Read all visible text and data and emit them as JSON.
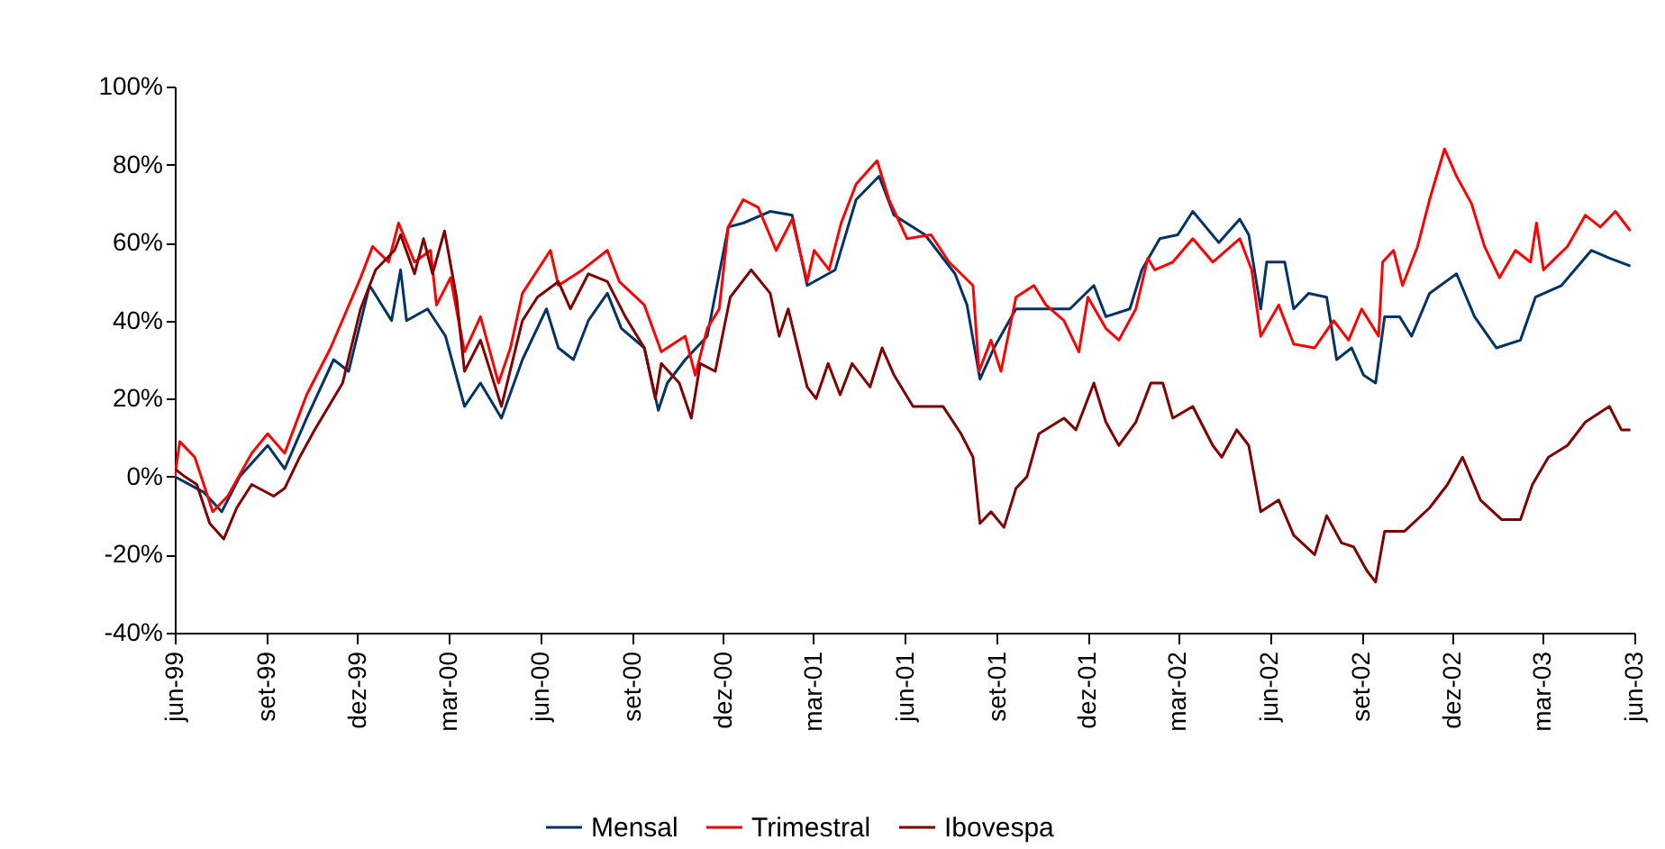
{
  "chart_data": {
    "type": "line",
    "xlim": [
      "1999-06-01",
      "2003-06-01"
    ],
    "xticks": [
      {
        "value": "1999-06-01",
        "label": "jun-99"
      },
      {
        "value": "1999-09-01",
        "label": "set-99"
      },
      {
        "value": "1999-12-01",
        "label": "dez-99"
      },
      {
        "value": "2000-03-01",
        "label": "mar-00"
      },
      {
        "value": "2000-06-01",
        "label": "jun-00"
      },
      {
        "value": "2000-09-01",
        "label": "set-00"
      },
      {
        "value": "2000-12-01",
        "label": "dez-00"
      },
      {
        "value": "2001-03-01",
        "label": "mar-01"
      },
      {
        "value": "2001-06-01",
        "label": "jun-01"
      },
      {
        "value": "2001-09-01",
        "label": "set-01"
      },
      {
        "value": "2001-12-01",
        "label": "dez-01"
      },
      {
        "value": "2002-03-01",
        "label": "mar-02"
      },
      {
        "value": "2002-06-01",
        "label": "jun-02"
      },
      {
        "value": "2002-09-01",
        "label": "set-02"
      },
      {
        "value": "2002-12-01",
        "label": "dez-02"
      },
      {
        "value": "2003-03-01",
        "label": "mar-03"
      },
      {
        "value": "2003-06-01",
        "label": "jun-03"
      }
    ],
    "ylim": [
      -40,
      100
    ],
    "yticks": [
      {
        "value": -40,
        "label": "-40%"
      },
      {
        "value": -20,
        "label": "-20%"
      },
      {
        "value": 0,
        "label": "0%"
      },
      {
        "value": 20,
        "label": "20%"
      },
      {
        "value": 40,
        "label": "40%"
      },
      {
        "value": 60,
        "label": "60%"
      },
      {
        "value": 80,
        "label": "80%"
      },
      {
        "value": 100,
        "label": "100%"
      }
    ],
    "grid": false,
    "legend": "bottom",
    "series": [
      {
        "name": "Mensal",
        "color": "#003366",
        "x": [
          "1999-06-01",
          "1999-06-30",
          "1999-07-18",
          "1999-08-05",
          "1999-09-02",
          "1999-09-19",
          "1999-10-11",
          "1999-11-07",
          "1999-11-22",
          "1999-12-13",
          "2000-01-04",
          "2000-01-13",
          "2000-01-19",
          "2000-02-09",
          "2000-02-27",
          "2000-03-17",
          "2000-04-02",
          "2000-04-23",
          "2000-05-14",
          "2000-06-07",
          "2000-06-19",
          "2000-07-04",
          "2000-07-19",
          "2000-08-07",
          "2000-08-21",
          "2000-09-13",
          "2000-09-27",
          "2000-10-06",
          "2000-10-24",
          "2000-11-15",
          "2000-12-06",
          "2000-12-21",
          "2001-01-17",
          "2001-02-08",
          "2001-02-23",
          "2001-03-23",
          "2001-04-13",
          "2001-05-06",
          "2001-05-21",
          "2001-06-21",
          "2001-07-21",
          "2001-08-02",
          "2001-08-15",
          "2001-08-29",
          "2001-09-20",
          "2001-11-13",
          "2001-12-07",
          "2001-12-19",
          "2002-01-12",
          "2002-01-24",
          "2002-02-11",
          "2002-03-01",
          "2002-03-16",
          "2002-04-11",
          "2002-05-02",
          "2002-05-11",
          "2002-05-23",
          "2002-05-29",
          "2002-06-16",
          "2002-06-25",
          "2002-07-10",
          "2002-07-28",
          "2002-08-07",
          "2002-08-22",
          "2002-09-03",
          "2002-09-15",
          "2002-09-24",
          "2002-10-09",
          "2002-10-21",
          "2002-11-08",
          "2002-12-05",
          "2002-12-23",
          "2003-01-14",
          "2003-02-07",
          "2003-02-22",
          "2003-03-20",
          "2003-04-19",
          "2003-05-07",
          "2003-05-28"
        ],
        "values": [
          0,
          -4,
          -9,
          0,
          8,
          2,
          15,
          30,
          27,
          49,
          40,
          53,
          40,
          43,
          36,
          18,
          24,
          15,
          30,
          43,
          33,
          30,
          40,
          47,
          38,
          33,
          17,
          24,
          30,
          36,
          64,
          65,
          68,
          67,
          49,
          53,
          71,
          77,
          67,
          62,
          52,
          44,
          25,
          33,
          43,
          43,
          49,
          41,
          43,
          53,
          61,
          62,
          68,
          60,
          66,
          62,
          43,
          55,
          55,
          43,
          47,
          46,
          30,
          33,
          26,
          24,
          41,
          41,
          36,
          47,
          52,
          41,
          33,
          35,
          46,
          49,
          58,
          56,
          54
        ]
      },
      {
        "name": "Trimestral",
        "color": "#ff0000",
        "x": [
          "1999-06-01",
          "1999-06-06",
          "1999-06-21",
          "1999-07-09",
          "1999-07-24",
          "1999-08-17",
          "1999-09-02",
          "1999-09-19",
          "1999-10-11",
          "1999-11-04",
          "1999-12-04",
          "1999-12-16",
          "2000-01-01",
          "2000-01-11",
          "2000-01-27",
          "2000-02-12",
          "2000-02-18",
          "2000-03-03",
          "2000-03-17",
          "2000-04-02",
          "2000-04-20",
          "2000-05-02",
          "2000-05-14",
          "2000-06-11",
          "2000-06-19",
          "2000-07-13",
          "2000-08-07",
          "2000-08-19",
          "2000-09-13",
          "2000-09-30",
          "2000-10-24",
          "2000-11-03",
          "2000-11-15",
          "2000-11-27",
          "2000-12-06",
          "2000-12-21",
          "2001-01-05",
          "2001-01-23",
          "2001-02-08",
          "2001-02-23",
          "2001-03-02",
          "2001-03-17",
          "2001-03-29",
          "2001-04-13",
          "2001-05-04",
          "2001-05-16",
          "2001-06-03",
          "2001-06-27",
          "2001-07-15",
          "2001-08-08",
          "2001-08-14",
          "2001-08-26",
          "2001-09-05",
          "2001-09-20",
          "2001-10-08",
          "2001-10-20",
          "2001-11-07",
          "2001-11-22",
          "2001-12-01",
          "2001-12-19",
          "2002-01-01",
          "2002-01-18",
          "2002-01-30",
          "2002-02-06",
          "2002-02-24",
          "2002-03-16",
          "2002-04-05",
          "2002-05-02",
          "2002-05-14",
          "2002-05-23",
          "2002-06-10",
          "2002-06-25",
          "2002-07-16",
          "2002-08-04",
          "2002-08-19",
          "2002-09-01",
          "2002-09-18",
          "2002-09-22",
          "2002-10-03",
          "2002-10-12",
          "2002-10-27",
          "2002-11-08",
          "2002-11-23",
          "2002-12-05",
          "2002-12-20",
          "2003-01-02",
          "2003-01-17",
          "2003-02-02",
          "2003-02-17",
          "2003-02-23",
          "2003-03-02",
          "2003-03-26",
          "2003-04-13",
          "2003-04-28",
          "2003-05-13",
          "2003-05-28"
        ],
        "values": [
          0,
          9,
          5,
          -9,
          -5,
          6,
          11,
          6,
          21,
          33,
          51,
          59,
          55,
          65,
          55,
          58,
          44,
          51,
          32,
          41,
          24,
          33,
          47,
          58,
          49,
          53,
          58,
          50,
          44,
          32,
          36,
          26,
          38,
          43,
          64,
          71,
          69,
          58,
          66,
          50,
          58,
          53,
          65,
          75,
          81,
          71,
          61,
          62,
          55,
          49,
          27,
          35,
          27,
          46,
          49,
          44,
          40,
          32,
          46,
          38,
          35,
          43,
          56,
          53,
          55,
          61,
          55,
          61,
          53,
          36,
          44,
          34,
          33,
          40,
          35,
          43,
          36,
          55,
          58,
          49,
          59,
          71,
          84,
          77,
          70,
          59,
          51,
          58,
          55,
          65,
          53,
          59,
          67,
          64,
          68,
          63
        ]
      },
      {
        "name": "Ibovespa",
        "color": "#800000",
        "x": [
          "1999-06-01",
          "1999-06-11",
          "1999-06-23",
          "1999-07-06",
          "1999-07-20",
          "1999-08-02",
          "1999-08-17",
          "1999-09-08",
          "1999-09-19",
          "1999-10-04",
          "1999-10-19",
          "1999-11-16",
          "1999-12-04",
          "1999-12-19",
          "2000-01-07",
          "2000-01-13",
          "2000-01-27",
          "2000-02-05",
          "2000-02-14",
          "2000-02-26",
          "2000-03-09",
          "2000-03-17",
          "2000-04-02",
          "2000-04-23",
          "2000-05-14",
          "2000-05-29",
          "2000-06-19",
          "2000-07-01",
          "2000-07-19",
          "2000-08-07",
          "2000-08-25",
          "2000-09-13",
          "2000-09-24",
          "2000-09-30",
          "2000-10-18",
          "2000-10-30",
          "2000-11-08",
          "2000-11-23",
          "2000-12-08",
          "2000-12-29",
          "2001-01-17",
          "2001-01-26",
          "2001-02-04",
          "2001-02-23",
          "2001-03-04",
          "2001-03-16",
          "2001-03-28",
          "2001-04-09",
          "2001-04-27",
          "2001-05-09",
          "2001-05-21",
          "2001-06-09",
          "2001-07-09",
          "2001-07-27",
          "2001-08-08",
          "2001-08-15",
          "2001-08-26",
          "2001-09-08",
          "2001-09-20",
          "2001-10-01",
          "2001-10-13",
          "2001-11-07",
          "2001-11-19",
          "2001-12-07",
          "2001-12-19",
          "2002-01-01",
          "2002-01-18",
          "2002-01-24",
          "2002-02-02",
          "2002-02-14",
          "2002-02-24",
          "2002-03-16",
          "2002-04-05",
          "2002-04-14",
          "2002-04-29",
          "2002-05-11",
          "2002-05-23",
          "2002-06-10",
          "2002-06-25",
          "2002-07-16",
          "2002-07-28",
          "2002-08-12",
          "2002-08-24",
          "2002-09-06",
          "2002-09-15",
          "2002-09-24",
          "2002-10-14",
          "2002-11-08",
          "2002-11-26",
          "2002-12-11",
          "2002-12-29",
          "2003-01-19",
          "2003-02-07",
          "2003-02-19",
          "2003-03-07",
          "2003-03-26",
          "2003-04-13",
          "2003-05-07",
          "2003-05-19",
          "2003-05-28"
        ],
        "values": [
          2,
          0,
          -2,
          -12,
          -16,
          -8,
          -2,
          -5,
          -3,
          5,
          12,
          24,
          43,
          53,
          58,
          62,
          52,
          61,
          52,
          63,
          46,
          27,
          35,
          18,
          40,
          46,
          50,
          43,
          52,
          50,
          41,
          33,
          20,
          29,
          24,
          15,
          29,
          27,
          46,
          53,
          47,
          36,
          43,
          23,
          20,
          29,
          21,
          29,
          23,
          33,
          26,
          18,
          18,
          11,
          5,
          -12,
          -9,
          -13,
          -3,
          0,
          11,
          15,
          12,
          24,
          14,
          8,
          14,
          18,
          24,
          24,
          15,
          18,
          8,
          5,
          12,
          8,
          -9,
          -6,
          -15,
          -20,
          -10,
          -17,
          -18,
          -24,
          -27,
          -14,
          -14,
          -8,
          -2,
          5,
          -6,
          -11,
          -11,
          -2,
          5,
          8,
          14,
          18,
          12,
          12
        ]
      }
    ]
  }
}
